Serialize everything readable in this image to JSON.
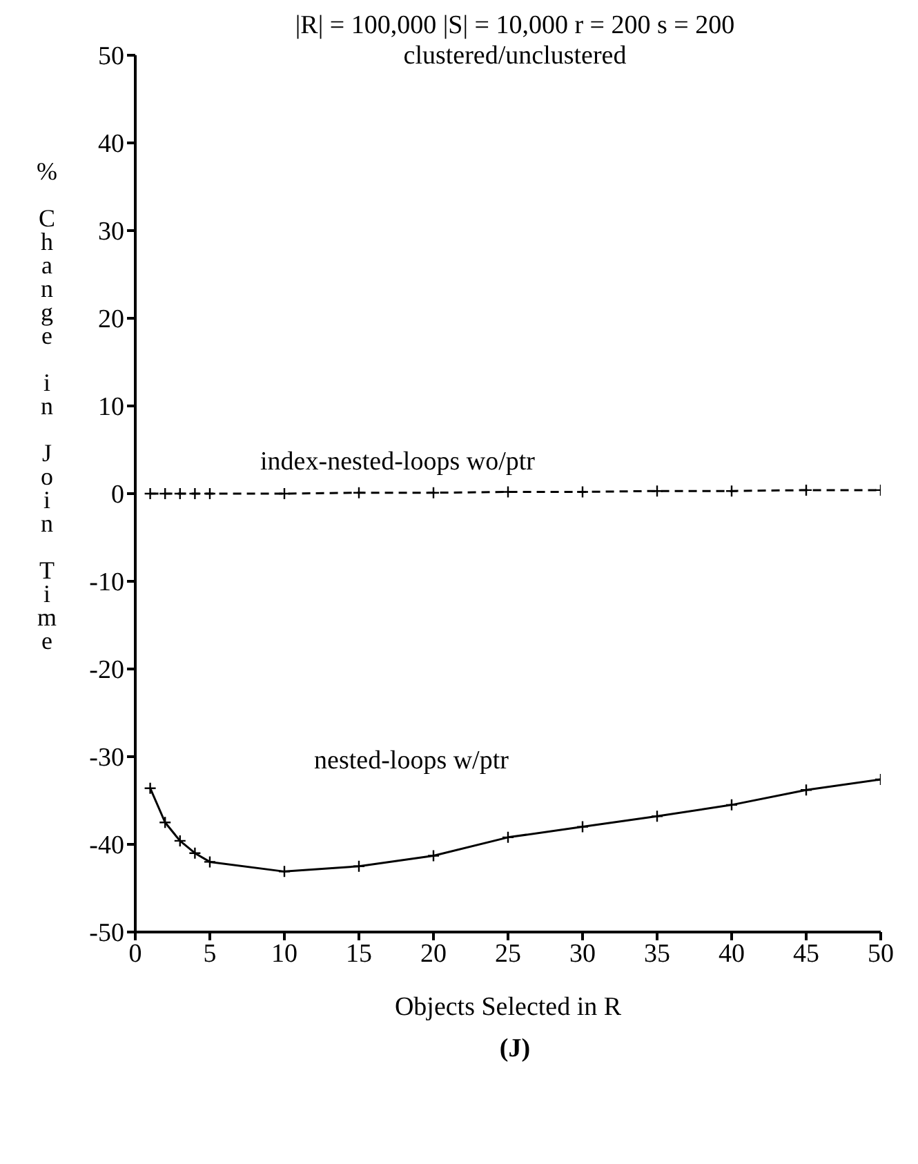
{
  "chart_data": {
    "type": "line",
    "title": "|R| = 100,000  |S| = 10,000  r = 200  s = 200",
    "subtitle": "clustered/unclustered",
    "xlabel": "Objects Selected in R",
    "ylabel": "% Change in Join Time",
    "annotations": [
      "(J)"
    ],
    "x": [
      1,
      2,
      3,
      4,
      5,
      10,
      15,
      20,
      25,
      30,
      35,
      40,
      45,
      50
    ],
    "series": [
      {
        "name": "index-nested-loops wo/ptr",
        "color": "#000000",
        "line_style": "dashed",
        "values": [
          0,
          0,
          0,
          0,
          0,
          0,
          0.1,
          0.1,
          0.2,
          0.2,
          0.3,
          0.3,
          0.4,
          0.4
        ]
      },
      {
        "name": "nested-loops w/ptr",
        "color": "#000000",
        "line_style": "solid",
        "values": [
          -33.6,
          -37.5,
          -39.6,
          -41,
          -42,
          -43.1,
          -42.5,
          -41.3,
          -39.2,
          -38,
          -36.8,
          -35.5,
          -33.8,
          -32.6
        ]
      }
    ],
    "xlim": [
      0,
      50
    ],
    "xticks": [
      0,
      5,
      10,
      15,
      20,
      25,
      30,
      35,
      40,
      45,
      50
    ],
    "ylim": [
      -50,
      50
    ],
    "yticks": [
      -50,
      -40,
      -30,
      -20,
      -10,
      0,
      10,
      20,
      30,
      40,
      50
    ],
    "grid": false,
    "legend": false,
    "marker": "cross"
  }
}
